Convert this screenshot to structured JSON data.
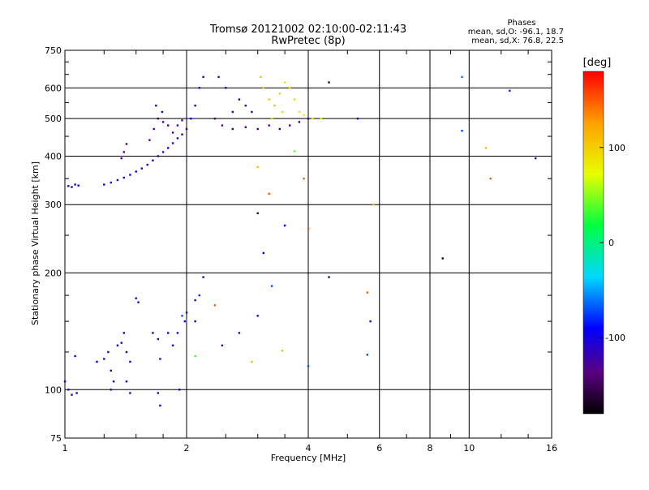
{
  "chart_data": {
    "type": "scatter",
    "title": "Tromsø 20121002 02:10:00-02:11:43",
    "subtitle": "RwPretec (8p)",
    "xlabel": "Frequency [MHz]",
    "ylabel": "Stationary phase Virtual Height [km]",
    "x_scale": "log",
    "y_scale": "log",
    "xlim": [
      1,
      16
    ],
    "ylim": [
      75,
      750
    ],
    "grid": true,
    "x_ticks": [
      1,
      2,
      4,
      6,
      8,
      10,
      16
    ],
    "y_ticks": [
      75,
      100,
      200,
      300,
      400,
      500,
      600,
      750
    ],
    "stats": {
      "header": "Phases",
      "line1": "mean, sd,O: -96.1, 18.7",
      "line2": "mean, sd,X:  76.8, 22.5"
    },
    "colorbar": {
      "label": "[deg]",
      "range": [
        -180,
        180
      ],
      "ticks": [
        100,
        0,
        -100
      ]
    },
    "series": [
      {
        "points": [
          {
            "x": 1.02,
            "y": 335,
            "p": -100
          },
          {
            "x": 1.04,
            "y": 333,
            "p": -95
          },
          {
            "x": 1.06,
            "y": 338,
            "p": -110
          },
          {
            "x": 1.08,
            "y": 336,
            "p": -90
          },
          {
            "x": 1.25,
            "y": 338,
            "p": -105
          },
          {
            "x": 1.3,
            "y": 342,
            "p": -100
          },
          {
            "x": 1.35,
            "y": 347,
            "p": -110
          },
          {
            "x": 1.4,
            "y": 352,
            "p": -100
          },
          {
            "x": 1.45,
            "y": 358,
            "p": -105
          },
          {
            "x": 1.5,
            "y": 365,
            "p": -100
          },
          {
            "x": 1.55,
            "y": 372,
            "p": -110
          },
          {
            "x": 1.6,
            "y": 380,
            "p": -105
          },
          {
            "x": 1.65,
            "y": 390,
            "p": -110
          },
          {
            "x": 1.7,
            "y": 400,
            "p": -100
          },
          {
            "x": 1.75,
            "y": 410,
            "p": -115
          },
          {
            "x": 1.8,
            "y": 420,
            "p": -105
          },
          {
            "x": 1.85,
            "y": 432,
            "p": -110
          },
          {
            "x": 1.9,
            "y": 445,
            "p": -100
          },
          {
            "x": 1.95,
            "y": 455,
            "p": -110
          },
          {
            "x": 2.0,
            "y": 470,
            "p": -100
          },
          {
            "x": 2.05,
            "y": 500,
            "p": -105
          },
          {
            "x": 2.1,
            "y": 540,
            "p": -100
          },
          {
            "x": 2.15,
            "y": 600,
            "p": -110
          },
          {
            "x": 2.2,
            "y": 640,
            "p": -105
          },
          {
            "x": 1.38,
            "y": 395,
            "p": -130
          },
          {
            "x": 1.4,
            "y": 410,
            "p": -135
          },
          {
            "x": 1.42,
            "y": 430,
            "p": -125
          },
          {
            "x": 1.62,
            "y": 440,
            "p": -140
          },
          {
            "x": 1.66,
            "y": 470,
            "p": -130
          },
          {
            "x": 1.7,
            "y": 500,
            "p": -140
          },
          {
            "x": 1.75,
            "y": 490,
            "p": -135
          },
          {
            "x": 1.8,
            "y": 480,
            "p": -140
          },
          {
            "x": 1.85,
            "y": 460,
            "p": -130
          },
          {
            "x": 1.9,
            "y": 480,
            "p": -140
          },
          {
            "x": 1.95,
            "y": 495,
            "p": -135
          },
          {
            "x": 1.68,
            "y": 540,
            "p": -105
          },
          {
            "x": 1.74,
            "y": 520,
            "p": -110
          },
          {
            "x": 2.4,
            "y": 640,
            "p": -110
          },
          {
            "x": 2.5,
            "y": 600,
            "p": -105
          },
          {
            "x": 2.35,
            "y": 500,
            "p": -140
          },
          {
            "x": 2.45,
            "y": 480,
            "p": -140
          },
          {
            "x": 2.6,
            "y": 470,
            "p": -145
          },
          {
            "x": 2.8,
            "y": 475,
            "p": -140
          },
          {
            "x": 3.0,
            "y": 470,
            "p": -145
          },
          {
            "x": 3.2,
            "y": 480,
            "p": -140
          },
          {
            "x": 3.4,
            "y": 470,
            "p": -145
          },
          {
            "x": 3.6,
            "y": 480,
            "p": -140
          },
          {
            "x": 3.8,
            "y": 490,
            "p": -145
          },
          {
            "x": 4.0,
            "y": 500,
            "p": -140
          },
          {
            "x": 2.6,
            "y": 520,
            "p": -110
          },
          {
            "x": 2.7,
            "y": 560,
            "p": -105
          },
          {
            "x": 2.8,
            "y": 540,
            "p": -110
          },
          {
            "x": 2.9,
            "y": 520,
            "p": -105
          },
          {
            "x": 3.05,
            "y": 640,
            "p": 110
          },
          {
            "x": 3.1,
            "y": 600,
            "p": 105
          },
          {
            "x": 3.2,
            "y": 560,
            "p": 100
          },
          {
            "x": 3.3,
            "y": 540,
            "p": 110
          },
          {
            "x": 3.4,
            "y": 580,
            "p": 95
          },
          {
            "x": 3.5,
            "y": 620,
            "p": 90
          },
          {
            "x": 3.6,
            "y": 600,
            "p": 100
          },
          {
            "x": 3.7,
            "y": 560,
            "p": 95
          },
          {
            "x": 3.8,
            "y": 520,
            "p": 85
          },
          {
            "x": 3.9,
            "y": 510,
            "p": 80
          },
          {
            "x": 4.1,
            "y": 500,
            "p": 85
          },
          {
            "x": 4.3,
            "y": 500,
            "p": 80
          },
          {
            "x": 3.25,
            "y": 500,
            "p": 60
          },
          {
            "x": 3.45,
            "y": 520,
            "p": 55
          },
          {
            "x": 4.5,
            "y": 620,
            "p": -160
          },
          {
            "x": 5.3,
            "y": 500,
            "p": -110
          },
          {
            "x": 9.6,
            "y": 640,
            "p": -60
          },
          {
            "x": 9.6,
            "y": 465,
            "p": -70
          },
          {
            "x": 12.6,
            "y": 590,
            "p": -80
          },
          {
            "x": 14.6,
            "y": 395,
            "p": -120
          },
          {
            "x": 11.3,
            "y": 350,
            "p": 150
          },
          {
            "x": 11.0,
            "y": 420,
            "p": 110
          },
          {
            "x": 3.9,
            "y": 350,
            "p": 150
          },
          {
            "x": 3.7,
            "y": 412,
            "p": 40
          },
          {
            "x": 3.2,
            "y": 320,
            "p": 150
          },
          {
            "x": 3.0,
            "y": 375,
            "p": 110
          },
          {
            "x": 3.0,
            "y": 285,
            "p": -160
          },
          {
            "x": 4.0,
            "y": 260,
            "p": 150
          },
          {
            "x": 3.5,
            "y": 265,
            "p": -90
          },
          {
            "x": 3.1,
            "y": 225,
            "p": -90
          },
          {
            "x": 5.8,
            "y": 300,
            "p": 110
          },
          {
            "x": 8.6,
            "y": 218,
            "p": -170
          },
          {
            "x": 4.5,
            "y": 195,
            "p": -150
          },
          {
            "x": 1.0,
            "y": 105,
            "p": -100
          },
          {
            "x": 1.02,
            "y": 100,
            "p": -105
          },
          {
            "x": 1.04,
            "y": 97,
            "p": -110
          },
          {
            "x": 1.07,
            "y": 98,
            "p": -100
          },
          {
            "x": 1.06,
            "y": 122,
            "p": -100
          },
          {
            "x": 1.2,
            "y": 118,
            "p": -105
          },
          {
            "x": 1.25,
            "y": 120,
            "p": -110
          },
          {
            "x": 1.28,
            "y": 125,
            "p": -100
          },
          {
            "x": 1.3,
            "y": 112,
            "p": -105
          },
          {
            "x": 1.32,
            "y": 105,
            "p": -110
          },
          {
            "x": 1.3,
            "y": 100,
            "p": -105
          },
          {
            "x": 1.35,
            "y": 130,
            "p": -100
          },
          {
            "x": 1.38,
            "y": 132,
            "p": -105
          },
          {
            "x": 1.4,
            "y": 140,
            "p": -100
          },
          {
            "x": 1.42,
            "y": 125,
            "p": -110
          },
          {
            "x": 1.45,
            "y": 118,
            "p": -105
          },
          {
            "x": 1.42,
            "y": 105,
            "p": -110
          },
          {
            "x": 1.45,
            "y": 98,
            "p": -105
          },
          {
            "x": 1.5,
            "y": 172,
            "p": -115
          },
          {
            "x": 1.52,
            "y": 168,
            "p": -110
          },
          {
            "x": 1.65,
            "y": 140,
            "p": -100
          },
          {
            "x": 1.7,
            "y": 135,
            "p": -105
          },
          {
            "x": 1.72,
            "y": 120,
            "p": -110
          },
          {
            "x": 1.7,
            "y": 98,
            "p": -105
          },
          {
            "x": 1.72,
            "y": 91,
            "p": -110
          },
          {
            "x": 1.8,
            "y": 140,
            "p": -90
          },
          {
            "x": 1.85,
            "y": 130,
            "p": -100
          },
          {
            "x": 1.9,
            "y": 140,
            "p": -100
          },
          {
            "x": 1.95,
            "y": 155,
            "p": -70
          },
          {
            "x": 2.0,
            "y": 158,
            "p": -105
          },
          {
            "x": 1.92,
            "y": 100,
            "p": -110
          },
          {
            "x": 1.98,
            "y": 150,
            "p": -105
          },
          {
            "x": 2.1,
            "y": 150,
            "p": -100
          },
          {
            "x": 2.1,
            "y": 170,
            "p": -100
          },
          {
            "x": 2.15,
            "y": 175,
            "p": -80
          },
          {
            "x": 2.2,
            "y": 195,
            "p": -110
          },
          {
            "x": 2.1,
            "y": 122,
            "p": 30
          },
          {
            "x": 2.35,
            "y": 165,
            "p": 150
          },
          {
            "x": 2.45,
            "y": 130,
            "p": -140
          },
          {
            "x": 2.7,
            "y": 140,
            "p": -110
          },
          {
            "x": 2.9,
            "y": 118,
            "p": 110
          },
          {
            "x": 3.0,
            "y": 155,
            "p": -120
          },
          {
            "x": 3.25,
            "y": 185,
            "p": -70
          },
          {
            "x": 3.45,
            "y": 126,
            "p": 110
          },
          {
            "x": 4.0,
            "y": 115,
            "p": -70
          },
          {
            "x": 5.6,
            "y": 178,
            "p": 150
          },
          {
            "x": 5.7,
            "y": 150,
            "p": -110
          },
          {
            "x": 5.6,
            "y": 123,
            "p": -70
          }
        ]
      }
    ]
  }
}
